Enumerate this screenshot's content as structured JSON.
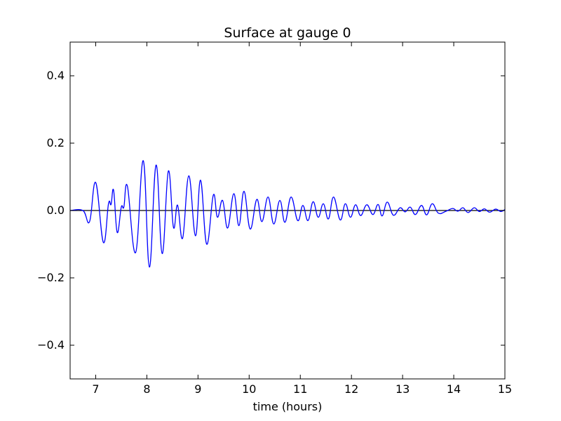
{
  "chart_data": {
    "type": "line",
    "title": "Surface at gauge 0",
    "xlabel": "time (hours)",
    "ylabel": "",
    "xlim": [
      6.5,
      15
    ],
    "ylim": [
      -0.5,
      0.5
    ],
    "grid": false,
    "x_ticks": [
      {
        "value": 7,
        "label": "7"
      },
      {
        "value": 8,
        "label": "8"
      },
      {
        "value": 9,
        "label": "9"
      },
      {
        "value": 10,
        "label": "10"
      },
      {
        "value": 11,
        "label": "11"
      },
      {
        "value": 12,
        "label": "12"
      },
      {
        "value": 13,
        "label": "13"
      },
      {
        "value": 14,
        "label": "14"
      },
      {
        "value": 15,
        "label": "15"
      }
    ],
    "y_ticks": [
      {
        "value": 0.4,
        "label": "0.4"
      },
      {
        "value": 0.2,
        "label": "0.2"
      },
      {
        "value": 0.0,
        "label": "0.0"
      },
      {
        "value": -0.2,
        "label": "−0.2"
      },
      {
        "value": -0.4,
        "label": "−0.4"
      }
    ],
    "reference_line": {
      "y": 0,
      "color": "#000000"
    },
    "series": [
      {
        "color": "#0000ff",
        "points": [
          [
            6.5,
            0.0
          ],
          [
            6.75,
            0.0
          ],
          [
            6.88,
            -0.033
          ],
          [
            7.0,
            0.083
          ],
          [
            7.15,
            -0.095
          ],
          [
            7.25,
            0.02
          ],
          [
            7.3,
            0.018
          ],
          [
            7.35,
            0.06
          ],
          [
            7.42,
            -0.065
          ],
          [
            7.5,
            0.01
          ],
          [
            7.55,
            0.01
          ],
          [
            7.62,
            0.072
          ],
          [
            7.78,
            -0.125
          ],
          [
            7.93,
            0.148
          ],
          [
            8.05,
            -0.168
          ],
          [
            8.18,
            0.135
          ],
          [
            8.3,
            -0.128
          ],
          [
            8.42,
            0.117
          ],
          [
            8.52,
            -0.05
          ],
          [
            8.6,
            0.016
          ],
          [
            8.7,
            -0.082
          ],
          [
            8.82,
            0.103
          ],
          [
            8.95,
            -0.075
          ],
          [
            9.05,
            0.09
          ],
          [
            9.17,
            -0.1
          ],
          [
            9.3,
            0.046
          ],
          [
            9.38,
            -0.02
          ],
          [
            9.48,
            0.03
          ],
          [
            9.58,
            -0.052
          ],
          [
            9.7,
            0.05
          ],
          [
            9.8,
            -0.045
          ],
          [
            9.9,
            0.057
          ],
          [
            10.02,
            -0.055
          ],
          [
            10.15,
            0.033
          ],
          [
            10.25,
            -0.033
          ],
          [
            10.37,
            0.04
          ],
          [
            10.48,
            -0.04
          ],
          [
            10.6,
            0.03
          ],
          [
            10.7,
            -0.035
          ],
          [
            10.82,
            0.04
          ],
          [
            10.95,
            -0.03
          ],
          [
            11.05,
            0.015
          ],
          [
            11.15,
            -0.03
          ],
          [
            11.25,
            0.026
          ],
          [
            11.35,
            -0.02
          ],
          [
            11.45,
            0.02
          ],
          [
            11.55,
            -0.025
          ],
          [
            11.65,
            0.04
          ],
          [
            11.78,
            -0.028
          ],
          [
            11.88,
            0.02
          ],
          [
            11.98,
            -0.02
          ],
          [
            12.08,
            0.017
          ],
          [
            12.18,
            -0.015
          ],
          [
            12.3,
            0.017
          ],
          [
            12.42,
            -0.012
          ],
          [
            12.52,
            0.018
          ],
          [
            12.6,
            -0.016
          ],
          [
            12.7,
            0.025
          ],
          [
            12.82,
            -0.014
          ],
          [
            12.95,
            0.008
          ],
          [
            13.05,
            -0.004
          ],
          [
            13.15,
            0.01
          ],
          [
            13.25,
            -0.012
          ],
          [
            13.37,
            0.015
          ],
          [
            13.47,
            -0.013
          ],
          [
            13.58,
            0.02
          ],
          [
            13.7,
            -0.008
          ],
          [
            13.85,
            -0.002
          ],
          [
            13.98,
            0.006
          ],
          [
            14.08,
            -0.002
          ],
          [
            14.18,
            0.008
          ],
          [
            14.28,
            -0.006
          ],
          [
            14.4,
            0.008
          ],
          [
            14.5,
            -0.003
          ],
          [
            14.6,
            0.005
          ],
          [
            14.7,
            -0.005
          ],
          [
            14.82,
            0.004
          ],
          [
            14.92,
            -0.003
          ],
          [
            15.0,
            0.003
          ]
        ]
      }
    ]
  }
}
